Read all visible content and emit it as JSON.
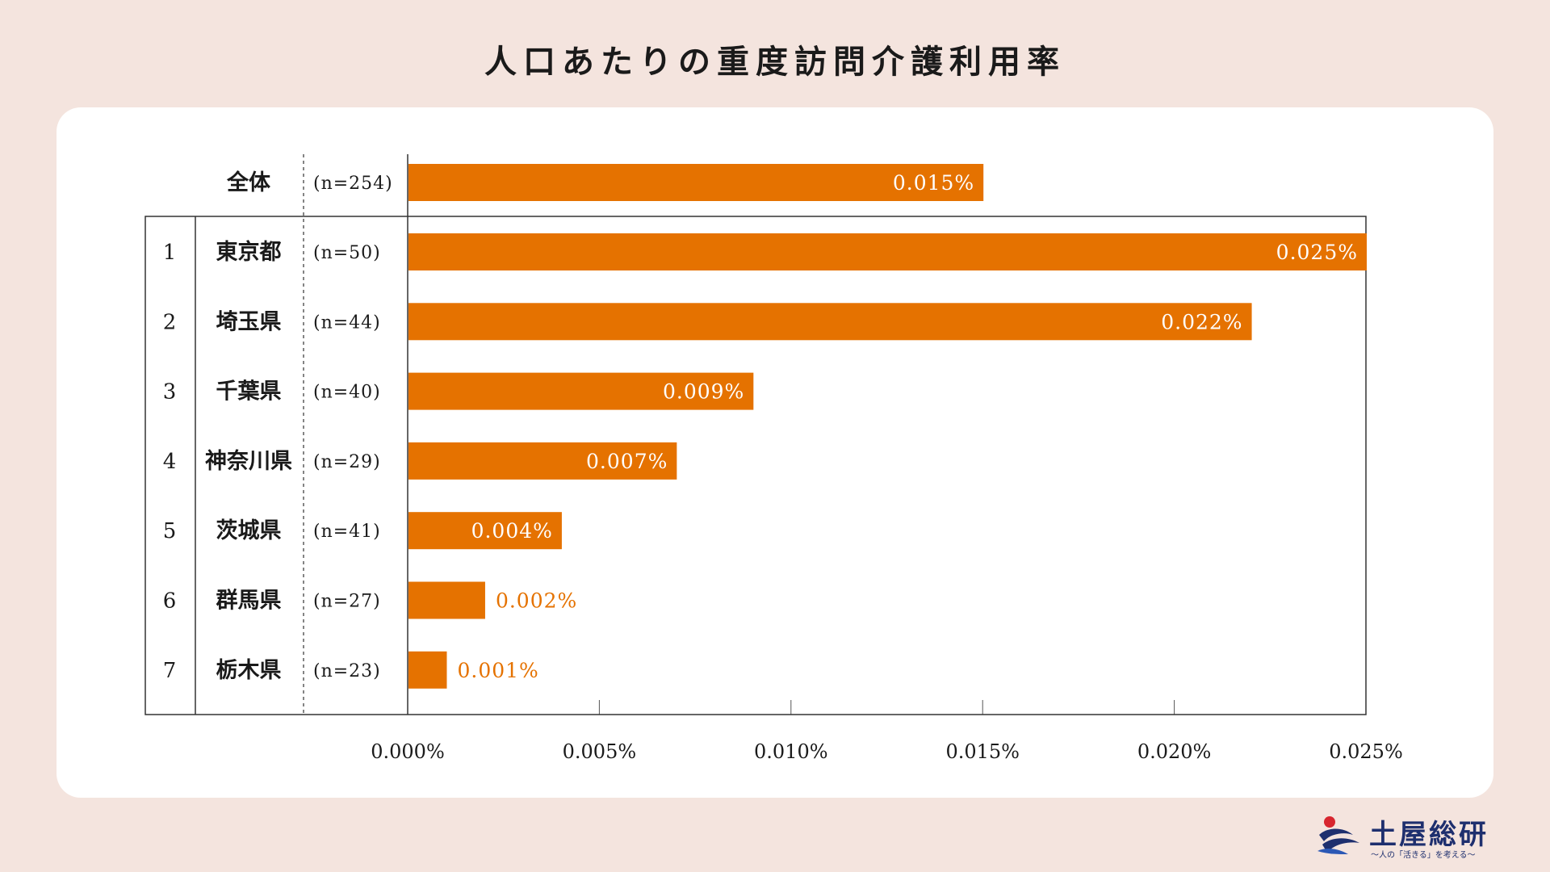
{
  "title": "人口あたりの重度訪問介護利用率",
  "colors": {
    "bar": "#e57200",
    "background": "#f4e4de",
    "card": "#ffffff",
    "logo": "#1e2f6e"
  },
  "chart_data": {
    "type": "bar",
    "orientation": "horizontal",
    "overall": {
      "label": "全体",
      "n": "(n=254)",
      "value": 0.015,
      "value_label": "0.015%"
    },
    "rows": [
      {
        "rank": "1",
        "label": "東京都",
        "n": "(n=50)",
        "value": 0.025,
        "value_label": "0.025%"
      },
      {
        "rank": "2",
        "label": "埼玉県",
        "n": "(n=44)",
        "value": 0.022,
        "value_label": "0.022%"
      },
      {
        "rank": "3",
        "label": "千葉県",
        "n": "(n=40)",
        "value": 0.009,
        "value_label": "0.009%"
      },
      {
        "rank": "4",
        "label": "神奈川県",
        "n": "(n=29)",
        "value": 0.007,
        "value_label": "0.007%"
      },
      {
        "rank": "5",
        "label": "茨城県",
        "n": "(n=41)",
        "value": 0.004,
        "value_label": "0.004%"
      },
      {
        "rank": "6",
        "label": "群馬県",
        "n": "(n=27)",
        "value": 0.002,
        "value_label": "0.002%"
      },
      {
        "rank": "7",
        "label": "栃木県",
        "n": "(n=23)",
        "value": 0.001,
        "value_label": "0.001%"
      }
    ],
    "xlim": [
      0,
      0.025
    ],
    "xticks": [
      0,
      0.005,
      0.01,
      0.015,
      0.02,
      0.025
    ],
    "xtick_labels": [
      "0.000%",
      "0.005%",
      "0.010%",
      "0.015%",
      "0.020%",
      "0.025%"
    ],
    "grid": true
  },
  "logo": {
    "name": "土屋総研",
    "tagline": "〜人の「活きる」を考える〜"
  }
}
